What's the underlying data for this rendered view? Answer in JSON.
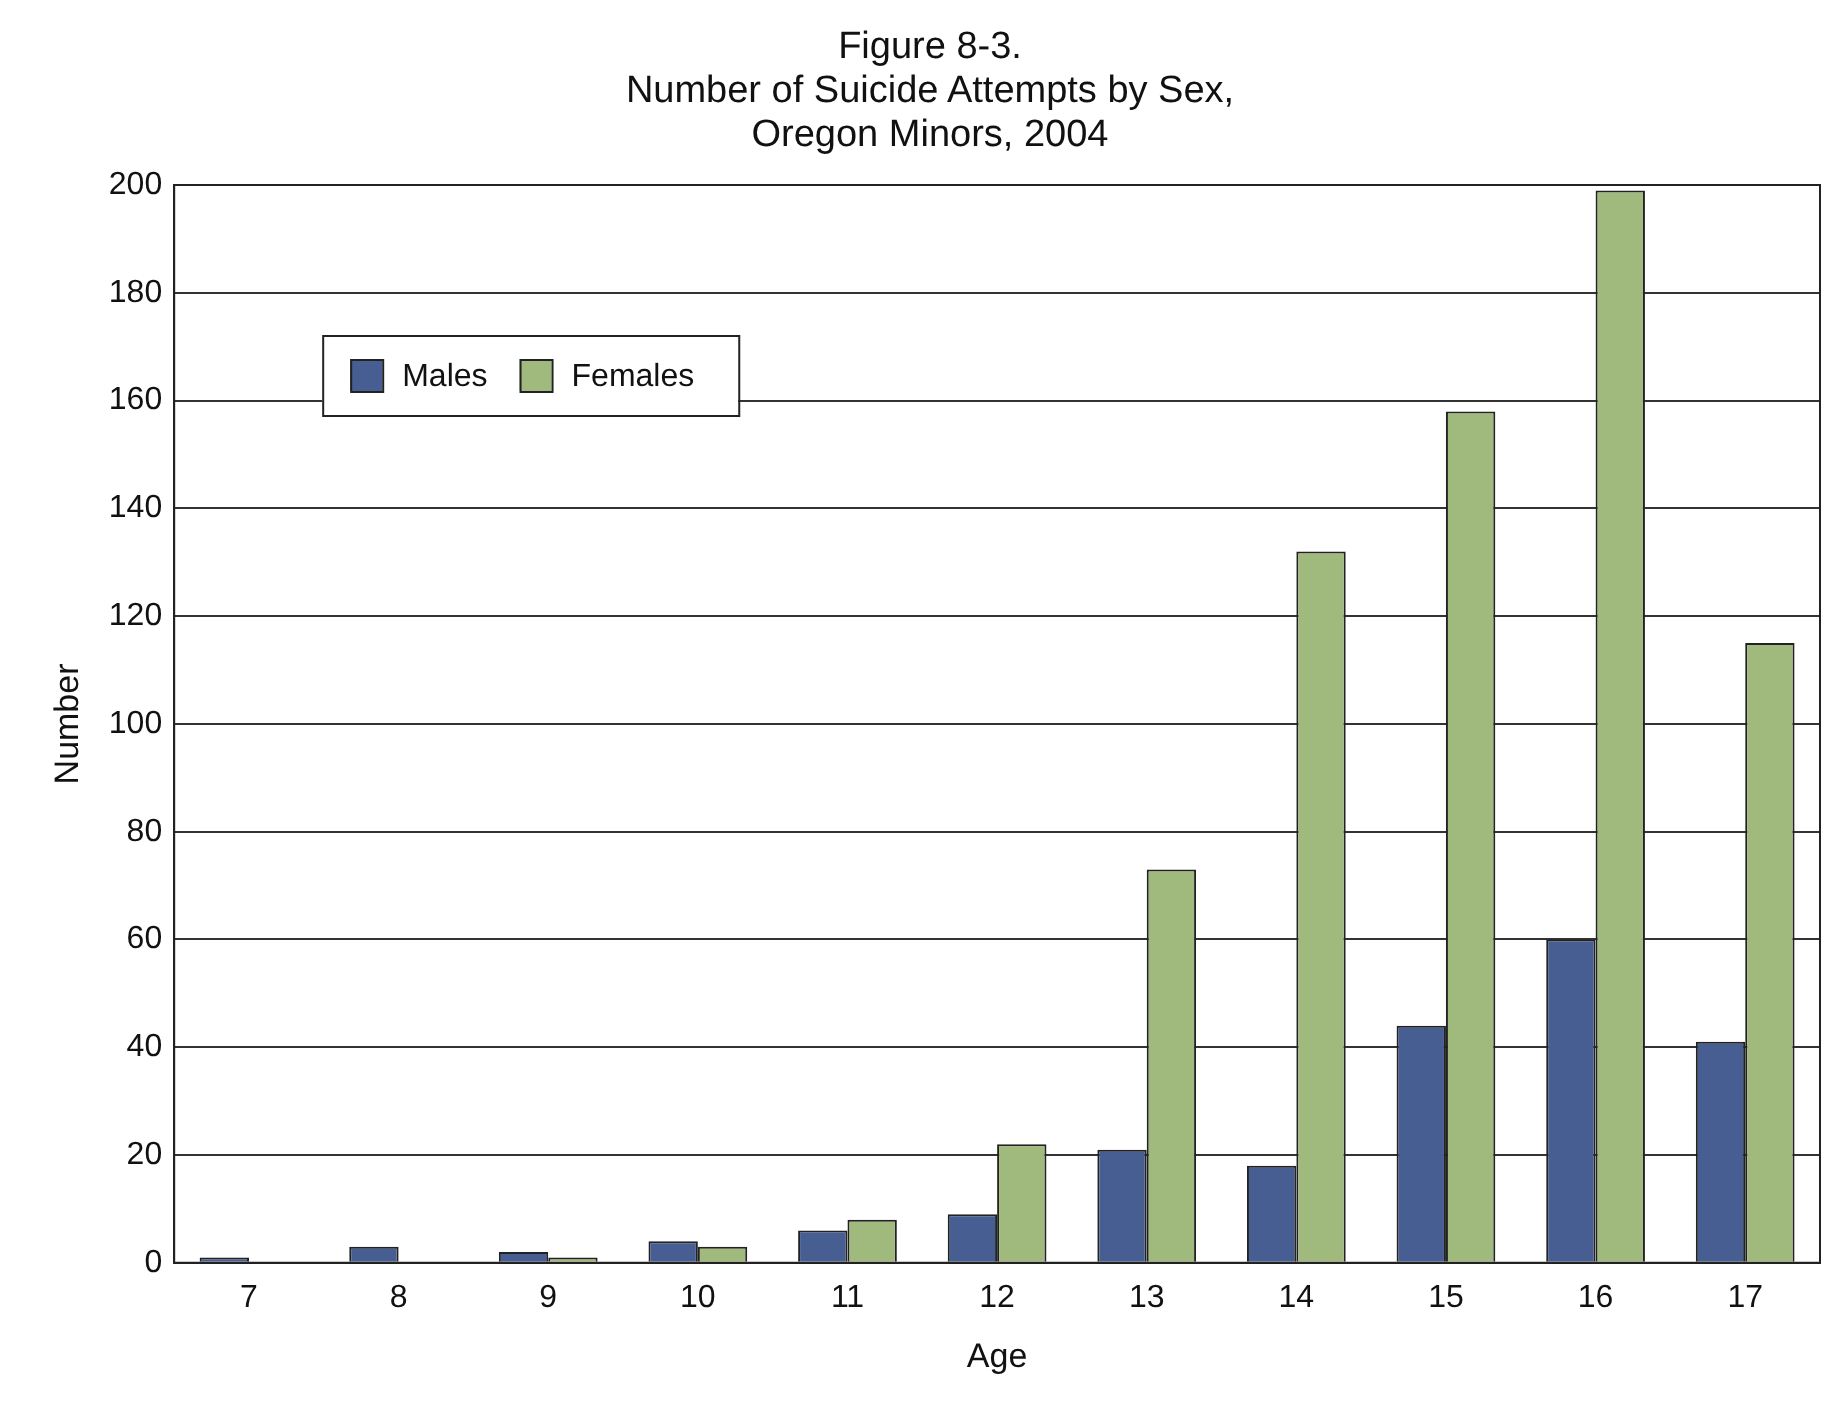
{
  "chart_data": {
    "type": "bar",
    "title": "Figure 8-3.\nNumber of Suicide Attempts by Sex,\nOregon Minors, 2004",
    "xlabel": "Age",
    "ylabel": "Number",
    "categories": [
      "7",
      "8",
      "9",
      "10",
      "11",
      "12",
      "13",
      "14",
      "15",
      "16",
      "17"
    ],
    "series": [
      {
        "name": "Males",
        "color": "#465e91",
        "values": [
          1,
          3,
          2,
          4,
          6,
          9,
          21,
          18,
          44,
          60,
          41
        ]
      },
      {
        "name": "Females",
        "color": "#a0b97c",
        "values": [
          0,
          0,
          1,
          3,
          8,
          22,
          73,
          132,
          158,
          199,
          115
        ]
      }
    ],
    "ylim": [
      0,
      200
    ],
    "yticks": [
      0,
      20,
      40,
      60,
      80,
      100,
      120,
      140,
      160,
      180,
      200
    ],
    "grid": "y",
    "legend": "top left"
  }
}
